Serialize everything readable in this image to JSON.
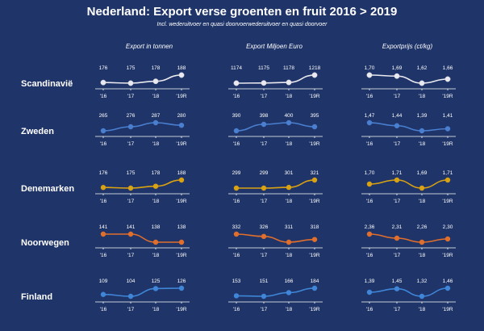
{
  "title": "Nederland: Export verse groenten en fruit 2016 > 2019",
  "subtitle": "Incl. wederuitvoer en quasi doorvoerwederuitvoer en quasi doorvoer",
  "colors": {
    "background": "#1f3468",
    "Scandinavië": "#e9e9ef",
    "Zweden": "#4a7fd0",
    "Denemarken": "#d9a213",
    "Noorwegen": "#e06e2c",
    "Finland": "#3f86d8"
  },
  "chart_data": {
    "type": "line",
    "layout": "small-multiples",
    "columns": [
      "Export in tonnen",
      "Export Miljoen Euro",
      "Exportprijs (ct/kg)"
    ],
    "x": [
      "'16",
      "'17",
      "'18",
      "'19R"
    ],
    "rows": [
      {
        "name": "Scandinavië",
        "series": [
          {
            "labels": [
              "176",
              "175",
              "178",
              "188"
            ],
            "values": [
              176,
              175,
              178,
              188
            ]
          },
          {
            "labels": [
              "1174",
              "1175",
              "1178",
              "1218"
            ],
            "values": [
              1174,
              1175,
              1178,
              1218
            ]
          },
          {
            "labels": [
              "1,70",
              "1,69",
              "1,62",
              "1,66"
            ],
            "values": [
              1.7,
              1.69,
              1.62,
              1.66
            ]
          }
        ]
      },
      {
        "name": "Zweden",
        "series": [
          {
            "labels": [
              "265",
              "276",
              "287",
              "280"
            ],
            "values": [
              265,
              276,
              287,
              280
            ]
          },
          {
            "labels": [
              "390",
              "398",
              "400",
              "395"
            ],
            "values": [
              390,
              398,
              400,
              395
            ]
          },
          {
            "labels": [
              "1,47",
              "1,44",
              "1,39",
              "1,41"
            ],
            "values": [
              1.47,
              1.44,
              1.39,
              1.41
            ]
          }
        ]
      },
      {
        "name": "Denemarken",
        "series": [
          {
            "labels": [
              "176",
              "175",
              "178",
              "188"
            ],
            "values": [
              176,
              175,
              178,
              188
            ]
          },
          {
            "labels": [
              "299",
              "299",
              "301",
              "321"
            ],
            "values": [
              299,
              299,
              301,
              321
            ]
          },
          {
            "labels": [
              "1,70",
              "1,71",
              "1,69",
              "1,71"
            ],
            "values": [
              1.7,
              1.71,
              1.69,
              1.71
            ]
          }
        ]
      },
      {
        "name": "Noorwegen",
        "series": [
          {
            "labels": [
              "141",
              "141",
              "138",
              "138"
            ],
            "values": [
              141,
              141,
              138,
              138
            ]
          },
          {
            "labels": [
              "332",
              "326",
              "311",
              "318"
            ],
            "values": [
              332,
              326,
              311,
              318
            ]
          },
          {
            "labels": [
              "2,36",
              "2,31",
              "2,26",
              "2,30"
            ],
            "values": [
              2.36,
              2.31,
              2.26,
              2.3
            ]
          }
        ]
      },
      {
        "name": "Finland",
        "series": [
          {
            "labels": [
              "109",
              "104",
              "125",
              "126"
            ],
            "values": [
              109,
              104,
              125,
              126
            ]
          },
          {
            "labels": [
              "153",
              "151",
              "166",
              "184"
            ],
            "values": [
              153,
              151,
              166,
              184
            ]
          },
          {
            "labels": [
              "1,39",
              "1,45",
              "1,32",
              "1,46"
            ],
            "values": [
              1.39,
              1.45,
              1.32,
              1.46
            ]
          }
        ]
      }
    ]
  }
}
